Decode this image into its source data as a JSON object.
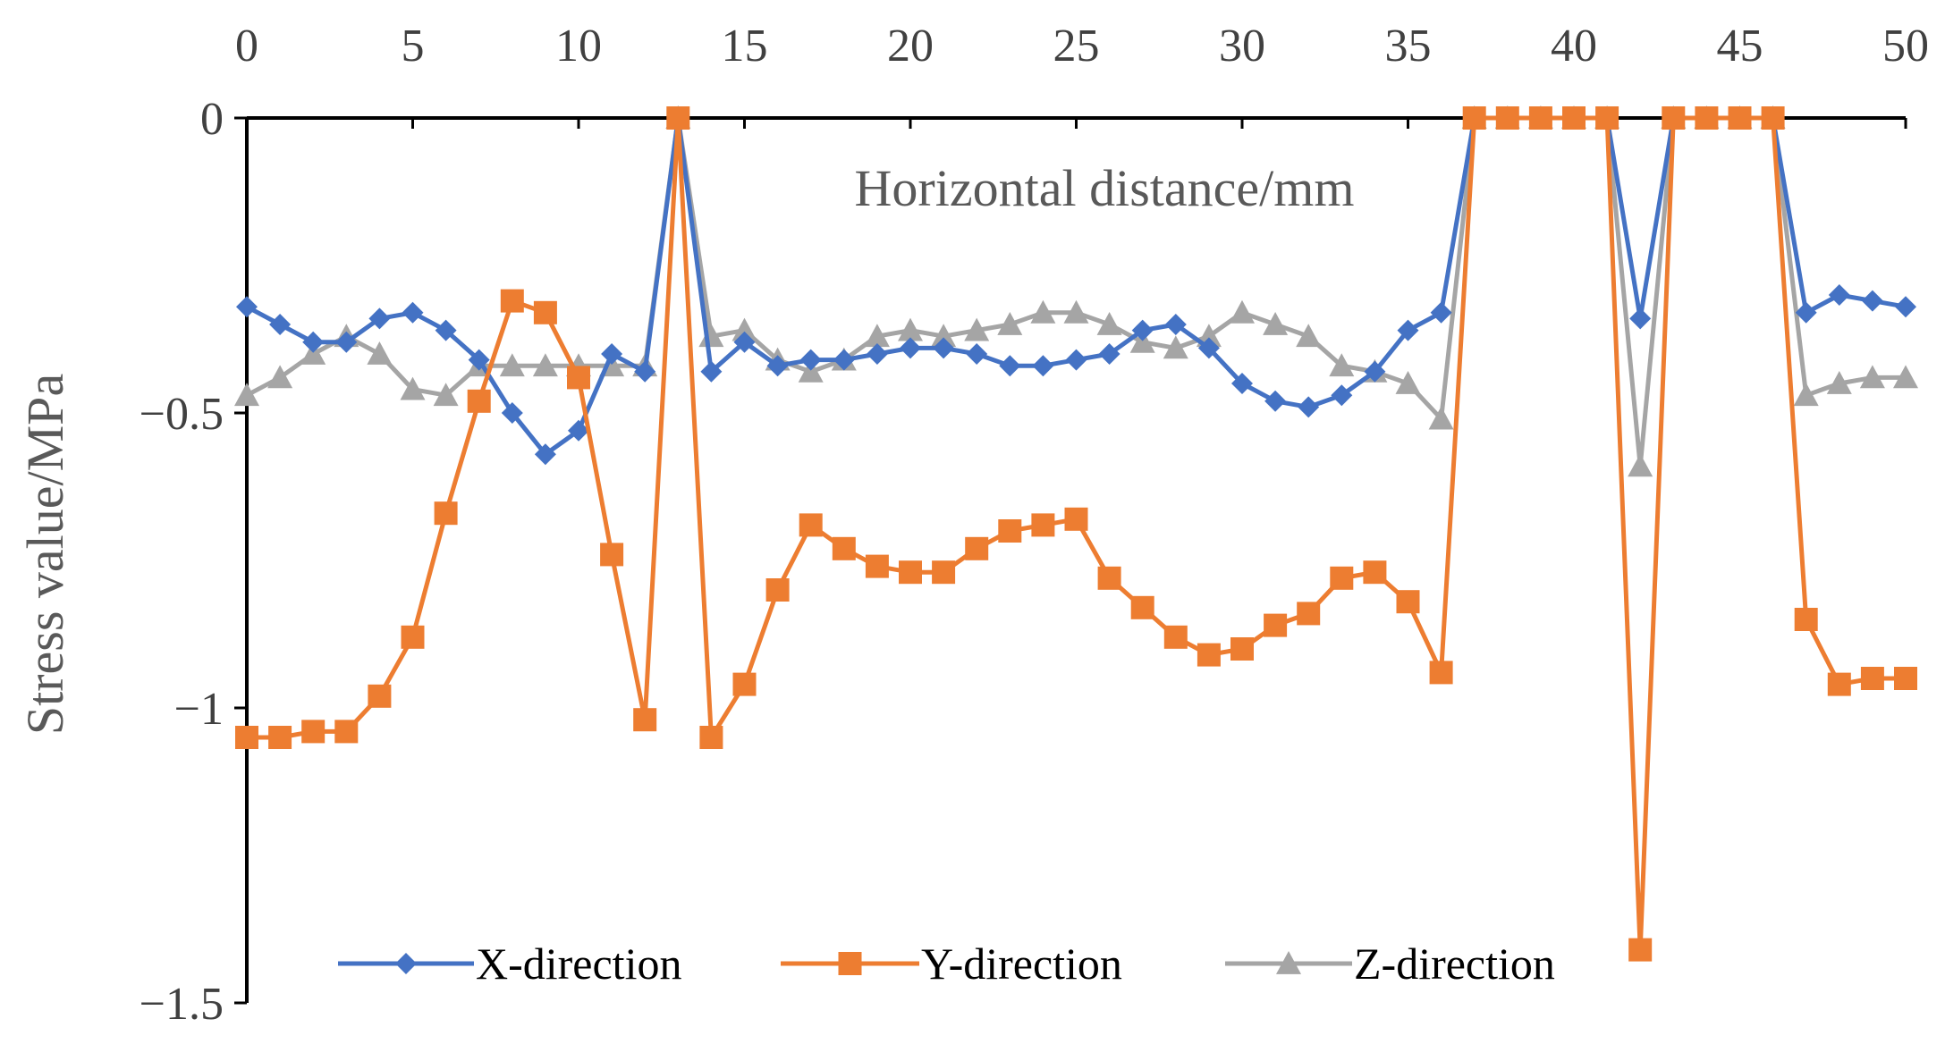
{
  "chart_data": {
    "type": "line",
    "title": "",
    "xlabel": "Horizontal distance/mm",
    "ylabel": "Stress value/MPa",
    "xlim": [
      0,
      50
    ],
    "ylim": [
      -1.5,
      0
    ],
    "x_ticks": [
      0,
      5,
      10,
      15,
      20,
      25,
      30,
      35,
      40,
      45,
      50
    ],
    "x_tick_labels": [
      "0",
      "5",
      "10",
      "15",
      "20",
      "25",
      "30",
      "35",
      "40",
      "45",
      "50"
    ],
    "y_ticks": [
      0,
      -0.5,
      -1,
      -1.5
    ],
    "y_tick_labels": [
      "0",
      "−0.5",
      "−1",
      "−1.5"
    ],
    "x_axis_position": "top",
    "grid": false,
    "legend_position": "bottom",
    "x": [
      0,
      1,
      2,
      3,
      4,
      5,
      6,
      7,
      8,
      9,
      10,
      11,
      12,
      13,
      14,
      15,
      16,
      17,
      18,
      19,
      20,
      21,
      22,
      23,
      24,
      25,
      26,
      27,
      28,
      29,
      30,
      31,
      32,
      33,
      34,
      35,
      36,
      37,
      38,
      39,
      40,
      41,
      42,
      43,
      44,
      45,
      46,
      47,
      48,
      49,
      50
    ],
    "series": [
      {
        "name": "X-direction",
        "color": "#4472C4",
        "marker": "diamond",
        "values": [
          -0.32,
          -0.35,
          -0.38,
          -0.38,
          -0.34,
          -0.33,
          -0.36,
          -0.41,
          -0.5,
          -0.57,
          -0.53,
          -0.4,
          -0.43,
          0,
          -0.43,
          -0.38,
          -0.42,
          -0.41,
          -0.41,
          -0.4,
          -0.39,
          -0.39,
          -0.4,
          -0.42,
          -0.42,
          -0.41,
          -0.4,
          -0.36,
          -0.35,
          -0.39,
          -0.45,
          -0.48,
          -0.49,
          -0.47,
          -0.43,
          -0.36,
          -0.33,
          0,
          0,
          0,
          0,
          0,
          -0.34,
          0,
          0,
          0,
          0,
          -0.33,
          -0.3,
          -0.31,
          -0.32
        ]
      },
      {
        "name": "Y-direction",
        "color": "#ED7D31",
        "marker": "square",
        "values": [
          -1.05,
          -1.05,
          -1.04,
          -1.04,
          -0.98,
          -0.88,
          -0.67,
          -0.48,
          -0.31,
          -0.33,
          -0.44,
          -0.74,
          -1.02,
          0,
          -1.05,
          -0.96,
          -0.8,
          -0.69,
          -0.73,
          -0.76,
          -0.77,
          -0.77,
          -0.73,
          -0.7,
          -0.69,
          -0.68,
          -0.78,
          -0.83,
          -0.88,
          -0.91,
          -0.9,
          -0.86,
          -0.84,
          -0.78,
          -0.77,
          -0.82,
          -0.94,
          0,
          0,
          0,
          0,
          0,
          -1.41,
          0,
          0,
          0,
          0,
          -0.85,
          -0.96,
          -0.95,
          -0.95
        ]
      },
      {
        "name": "Z-direction",
        "color": "#A5A5A5",
        "marker": "triangle",
        "values": [
          -0.47,
          -0.44,
          -0.4,
          -0.37,
          -0.4,
          -0.46,
          -0.47,
          -0.42,
          -0.42,
          -0.42,
          -0.42,
          -0.42,
          -0.42,
          0,
          -0.37,
          -0.36,
          -0.41,
          -0.43,
          -0.41,
          -0.37,
          -0.36,
          -0.37,
          -0.36,
          -0.35,
          -0.33,
          -0.33,
          -0.35,
          -0.38,
          -0.39,
          -0.37,
          -0.33,
          -0.35,
          -0.37,
          -0.42,
          -0.43,
          -0.45,
          -0.51,
          0,
          0,
          0,
          0,
          0,
          -0.59,
          0,
          0,
          0,
          0,
          -0.47,
          -0.45,
          -0.44,
          -0.44
        ]
      }
    ]
  }
}
